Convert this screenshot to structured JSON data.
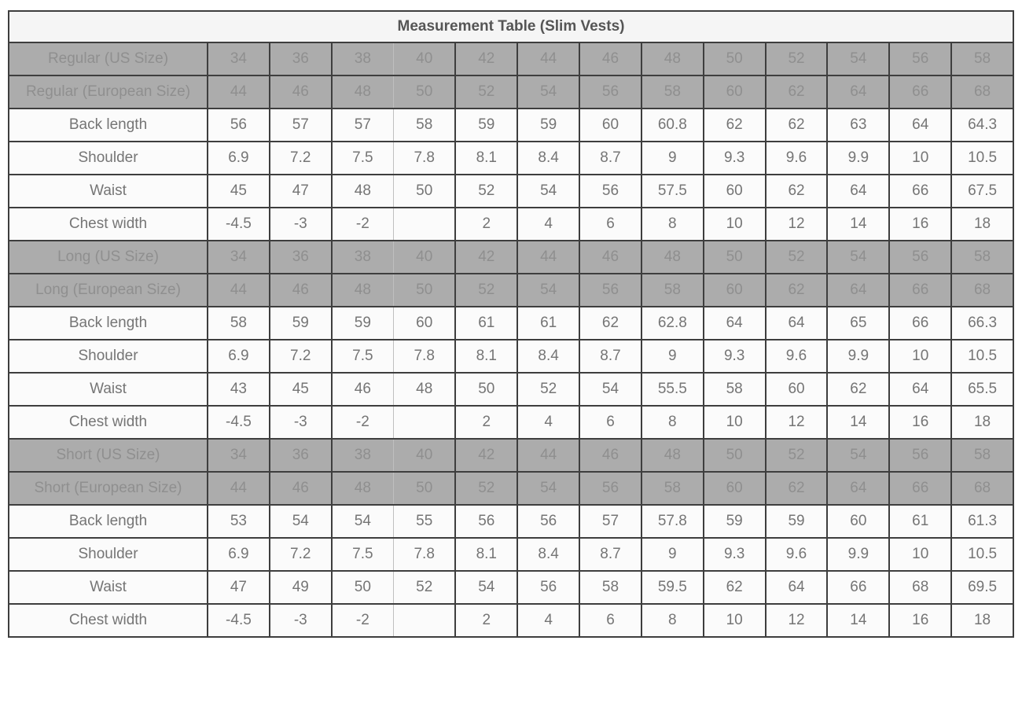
{
  "title": "Measurement Table (Slim Vests)",
  "colors": {
    "border": "#3e3e3e",
    "size_row_bg": "#acacac",
    "size_row_text": "#8f8f8f",
    "data_row_bg": "#fbfbfb",
    "data_row_text": "#757575",
    "title_bg": "#f5f5f5",
    "title_text": "#555555",
    "page_bg": "#ffffff"
  },
  "sections": [
    {
      "us_label": "Regular (US Size)",
      "eu_label": "Regular (European Size)",
      "us_sizes": [
        "34",
        "36",
        "38",
        "40",
        "42",
        "44",
        "46",
        "48",
        "50",
        "52",
        "54",
        "56",
        "58"
      ],
      "eu_sizes": [
        "44",
        "46",
        "48",
        "50",
        "52",
        "54",
        "56",
        "58",
        "60",
        "62",
        "64",
        "66",
        "68"
      ],
      "rows": [
        {
          "label": "Back length",
          "values": [
            "56",
            "57",
            "57",
            "58",
            "59",
            "59",
            "60",
            "60.8",
            "62",
            "62",
            "63",
            "64",
            "64.3"
          ]
        },
        {
          "label": "Shoulder",
          "values": [
            "6.9",
            "7.2",
            "7.5",
            "7.8",
            "8.1",
            "8.4",
            "8.7",
            "9",
            "9.3",
            "9.6",
            "9.9",
            "10",
            "10.5"
          ]
        },
        {
          "label": "Waist",
          "values": [
            "45",
            "47",
            "48",
            "50",
            "52",
            "54",
            "56",
            "57.5",
            "60",
            "62",
            "64",
            "66",
            "67.5"
          ]
        },
        {
          "label": "Chest width",
          "values": [
            "-4.5",
            "-3",
            "-2",
            "",
            "2",
            "4",
            "6",
            "8",
            "10",
            "12",
            "14",
            "16",
            "18"
          ]
        }
      ]
    },
    {
      "us_label": "Long (US Size)",
      "eu_label": "Long (European Size)",
      "us_sizes": [
        "34",
        "36",
        "38",
        "40",
        "42",
        "44",
        "46",
        "48",
        "50",
        "52",
        "54",
        "56",
        "58"
      ],
      "eu_sizes": [
        "44",
        "46",
        "48",
        "50",
        "52",
        "54",
        "56",
        "58",
        "60",
        "62",
        "64",
        "66",
        "68"
      ],
      "rows": [
        {
          "label": "Back length",
          "values": [
            "58",
            "59",
            "59",
            "60",
            "61",
            "61",
            "62",
            "62.8",
            "64",
            "64",
            "65",
            "66",
            "66.3"
          ]
        },
        {
          "label": "Shoulder",
          "values": [
            "6.9",
            "7.2",
            "7.5",
            "7.8",
            "8.1",
            "8.4",
            "8.7",
            "9",
            "9.3",
            "9.6",
            "9.9",
            "10",
            "10.5"
          ]
        },
        {
          "label": "Waist",
          "values": [
            "43",
            "45",
            "46",
            "48",
            "50",
            "52",
            "54",
            "55.5",
            "58",
            "60",
            "62",
            "64",
            "65.5"
          ]
        },
        {
          "label": "Chest width",
          "values": [
            "-4.5",
            "-3",
            "-2",
            "",
            "2",
            "4",
            "6",
            "8",
            "10",
            "12",
            "14",
            "16",
            "18"
          ]
        }
      ]
    },
    {
      "us_label": "Short (US Size)",
      "eu_label": "Short (European Size)",
      "us_sizes": [
        "34",
        "36",
        "38",
        "40",
        "42",
        "44",
        "46",
        "48",
        "50",
        "52",
        "54",
        "56",
        "58"
      ],
      "eu_sizes": [
        "44",
        "46",
        "48",
        "50",
        "52",
        "54",
        "56",
        "58",
        "60",
        "62",
        "64",
        "66",
        "68"
      ],
      "rows": [
        {
          "label": "Back length",
          "values": [
            "53",
            "54",
            "54",
            "55",
            "56",
            "56",
            "57",
            "57.8",
            "59",
            "59",
            "60",
            "61",
            "61.3"
          ]
        },
        {
          "label": "Shoulder",
          "values": [
            "6.9",
            "7.2",
            "7.5",
            "7.8",
            "8.1",
            "8.4",
            "8.7",
            "9",
            "9.3",
            "9.6",
            "9.9",
            "10",
            "10.5"
          ]
        },
        {
          "label": "Waist",
          "values": [
            "47",
            "49",
            "50",
            "52",
            "54",
            "56",
            "58",
            "59.5",
            "62",
            "64",
            "66",
            "68",
            "69.5"
          ]
        },
        {
          "label": "Chest width",
          "values": [
            "-4.5",
            "-3",
            "-2",
            "",
            "2",
            "4",
            "6",
            "8",
            "10",
            "12",
            "14",
            "16",
            "18"
          ]
        }
      ]
    }
  ]
}
